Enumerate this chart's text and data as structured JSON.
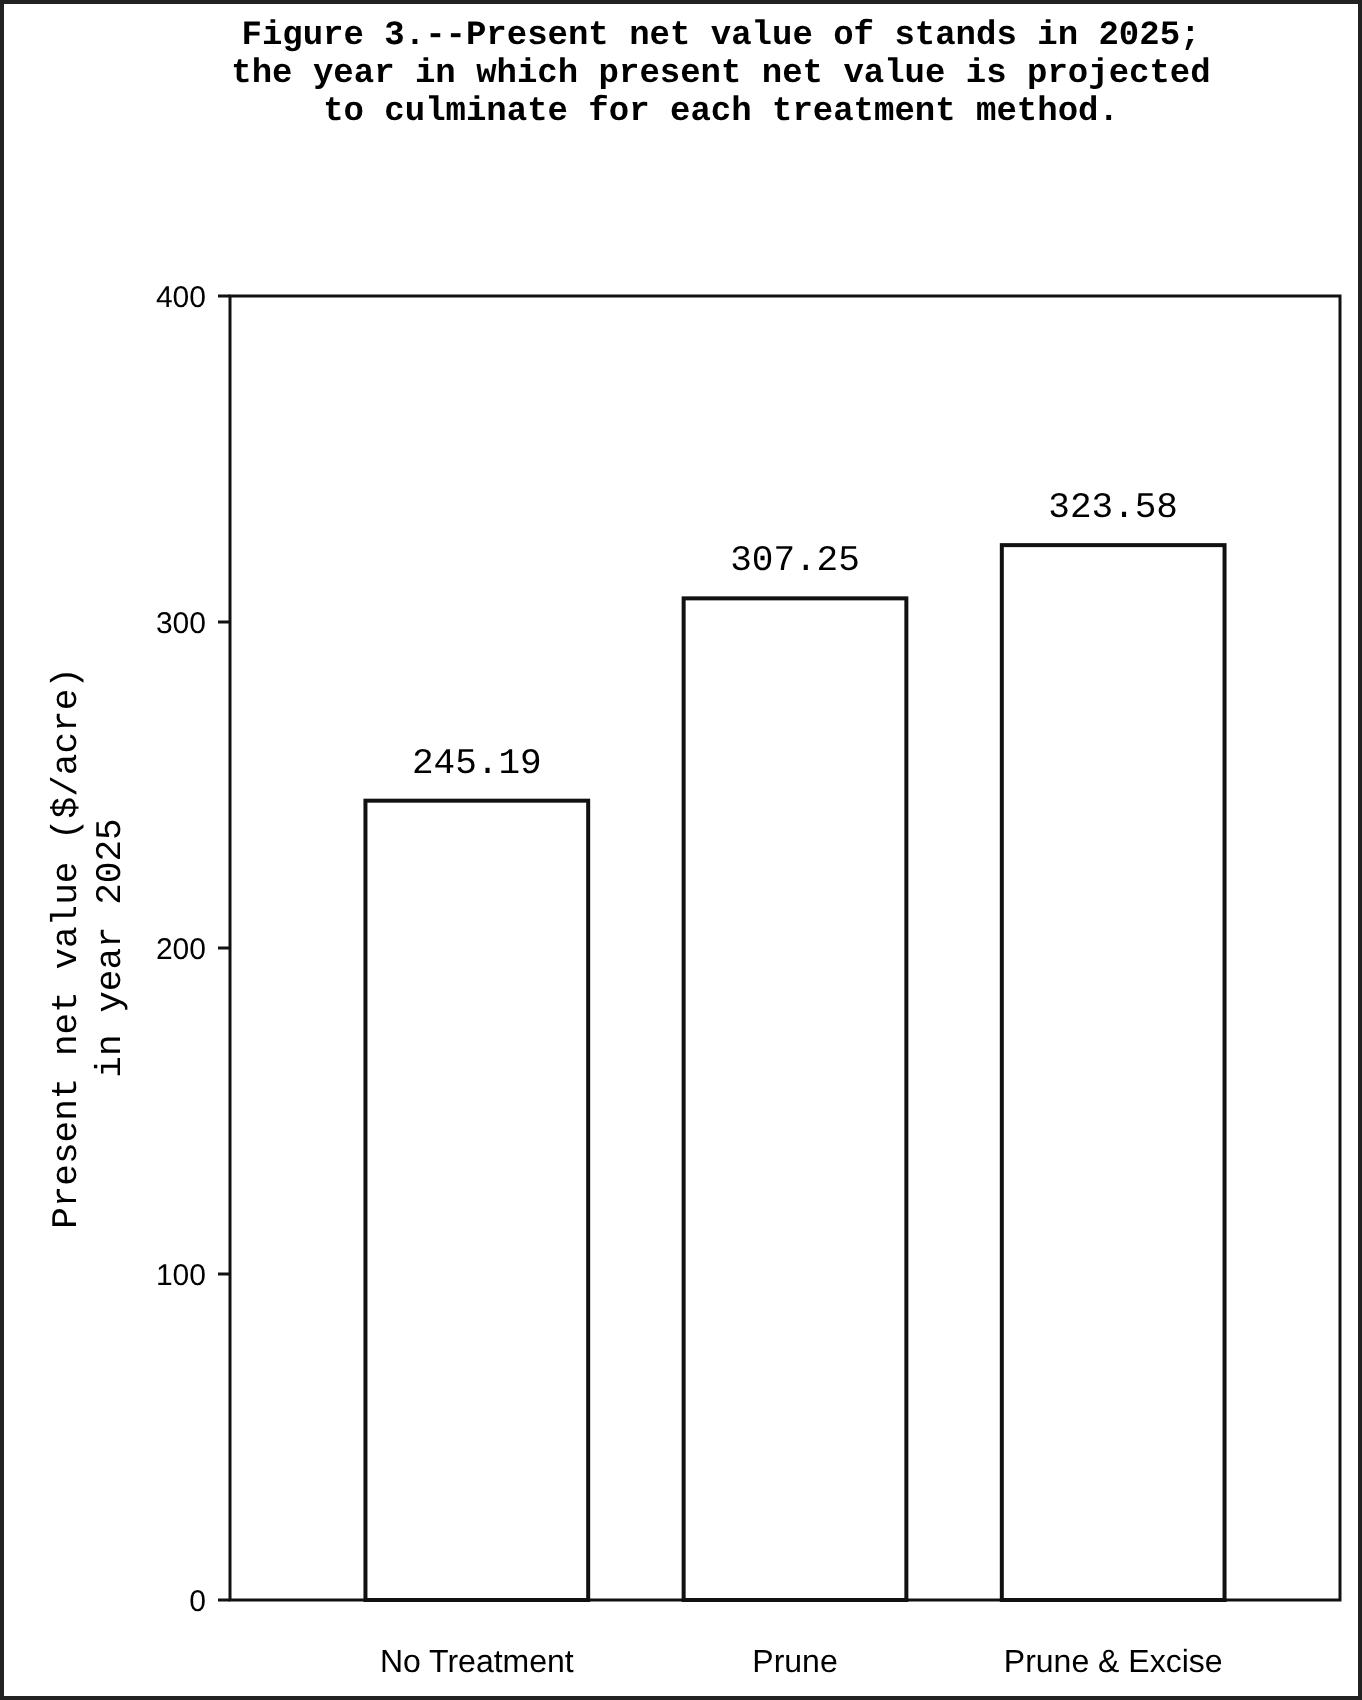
{
  "chart_data": {
    "type": "bar",
    "title": "Figure 3.--Present net value of stands in 2025;\nthe year in which present net value is projected\nto culminate for each treatment method.",
    "ylabel": "Present net value ($/acre)\nin year 2025",
    "categories": [
      "No Treatment",
      "Prune",
      "Prune & Excise"
    ],
    "values": [
      245.19,
      307.25,
      323.58
    ],
    "colors": [
      "#ffffff",
      "#ffffff",
      "#ffffff"
    ],
    "ylim": [
      0,
      400
    ],
    "yticks": [
      0,
      100,
      200,
      300,
      400
    ],
    "data_labels": true,
    "grid": false
  }
}
